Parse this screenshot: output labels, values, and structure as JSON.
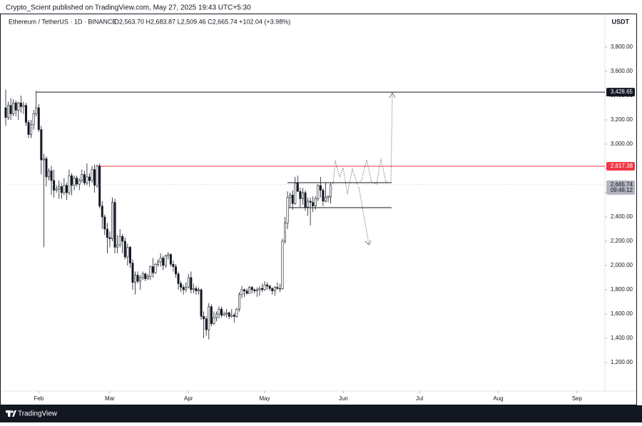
{
  "header": {
    "byline": "Crypto_Scient published on TradingView.com, May 27, 2025 19:43 UTC+5:30"
  },
  "footer": {
    "brand": "TradingView"
  },
  "chart_data": {
    "type": "candlestick",
    "title": "Ethereum / TetherUS · 1D · BINANCE",
    "ohlc_legend": "O2,563.70 H2,683.87 L2,509.46 C2,665.74 +102.04 (+3.98%)",
    "currency": "USDT",
    "up_color": "#ffffff",
    "down_color": "#131722",
    "grid": false,
    "xlim": [
      18,
      254
    ],
    "xticks": [
      {
        "value": 31,
        "label": "Feb"
      },
      {
        "value": 59,
        "label": "Mar"
      },
      {
        "value": 90,
        "label": "Apr"
      },
      {
        "value": 120,
        "label": "May"
      },
      {
        "value": 151,
        "label": "Jun"
      },
      {
        "value": 181,
        "label": "Jul"
      },
      {
        "value": 212,
        "label": "Aug"
      },
      {
        "value": 243,
        "label": "Sep"
      }
    ],
    "ylim": [
      1050,
      4000
    ],
    "yticks": [
      {
        "value": 1200,
        "label": "1,200.00"
      },
      {
        "value": 1400,
        "label": "1,400.00"
      },
      {
        "value": 1600,
        "label": "1,600.00"
      },
      {
        "value": 1800,
        "label": "1,800.00"
      },
      {
        "value": 2000,
        "label": "2,000.00"
      },
      {
        "value": 2200,
        "label": "2,200.00"
      },
      {
        "value": 2400,
        "label": "2,400.00"
      },
      {
        "value": 2600,
        "label": "2,600.00"
      },
      {
        "value": 2800,
        "label": "2,800.00"
      },
      {
        "value": 3000,
        "label": "3,000.00"
      },
      {
        "value": 3200,
        "label": "3,200.00"
      },
      {
        "value": 3400,
        "label": "3,400.00"
      },
      {
        "value": 3600,
        "label": "3,600.00"
      },
      {
        "value": 3800,
        "label": "3,800.00"
      }
    ],
    "levels": [
      {
        "value": 3428.65,
        "label": "3,428.65",
        "color": "#131722",
        "from": 30
      },
      {
        "value": 2817.38,
        "label": "2,817.38",
        "color": "#f23645",
        "from": 54
      }
    ],
    "last_price": {
      "value": 2665.74,
      "label": "2,665.74",
      "countdown": "09:46:12",
      "color": "#b2b5be"
    },
    "x": [
      18,
      19,
      20,
      21,
      22,
      23,
      24,
      25,
      26,
      27,
      28,
      29,
      30,
      31,
      32,
      33,
      34,
      35,
      36,
      37,
      38,
      39,
      40,
      41,
      42,
      43,
      44,
      45,
      46,
      47,
      48,
      49,
      50,
      51,
      52,
      53,
      54,
      55,
      56,
      57,
      58,
      59,
      60,
      61,
      62,
      63,
      64,
      65,
      66,
      67,
      68,
      69,
      70,
      71,
      72,
      73,
      74,
      75,
      76,
      77,
      78,
      79,
      80,
      81,
      82,
      83,
      84,
      85,
      86,
      87,
      88,
      89,
      90,
      91,
      92,
      93,
      94,
      95,
      96,
      97,
      98,
      99,
      100,
      101,
      102,
      103,
      104,
      105,
      106,
      107,
      108,
      109,
      110,
      111,
      112,
      113,
      114,
      115,
      116,
      117,
      118,
      119,
      120,
      121,
      122,
      123,
      124,
      125,
      126,
      127,
      128,
      129,
      130,
      131,
      132,
      133,
      134,
      135,
      136,
      137,
      138,
      139,
      140,
      141,
      142,
      143,
      144,
      145,
      146
    ],
    "ohlc": [
      [
        3300,
        3450,
        3150,
        3220
      ],
      [
        3220,
        3350,
        3200,
        3320
      ],
      [
        3320,
        3380,
        3200,
        3250
      ],
      [
        3250,
        3370,
        3230,
        3340
      ],
      [
        3340,
        3360,
        3230,
        3280
      ],
      [
        3280,
        3350,
        3200,
        3340
      ],
      [
        3340,
        3400,
        3260,
        3310
      ],
      [
        3310,
        3350,
        3250,
        3320
      ],
      [
        3320,
        3340,
        3150,
        3180
      ],
      [
        3180,
        3200,
        3050,
        3080
      ],
      [
        3080,
        3200,
        3050,
        3160
      ],
      [
        3160,
        3280,
        3120,
        3250
      ],
      [
        3250,
        3440,
        3230,
        3300
      ],
      [
        3300,
        3330,
        3100,
        3120
      ],
      [
        3120,
        3150,
        2750,
        2870
      ],
      [
        2870,
        2920,
        2150,
        2880
      ],
      [
        2880,
        2900,
        2650,
        2730
      ],
      [
        2730,
        2800,
        2700,
        2780
      ],
      [
        2780,
        2820,
        2580,
        2700
      ],
      [
        2700,
        2790,
        2560,
        2620
      ],
      [
        2620,
        2660,
        2600,
        2630
      ],
      [
        2630,
        2700,
        2550,
        2650
      ],
      [
        2650,
        2680,
        2550,
        2600
      ],
      [
        2600,
        2720,
        2580,
        2660
      ],
      [
        2660,
        2680,
        2540,
        2600
      ],
      [
        2600,
        2790,
        2580,
        2740
      ],
      [
        2740,
        2760,
        2580,
        2660
      ],
      [
        2660,
        2740,
        2620,
        2720
      ],
      [
        2720,
        2740,
        2650,
        2670
      ],
      [
        2670,
        2720,
        2620,
        2700
      ],
      [
        2700,
        2790,
        2680,
        2750
      ],
      [
        2750,
        2780,
        2660,
        2680
      ],
      [
        2680,
        2840,
        2660,
        2730
      ],
      [
        2730,
        2760,
        2650,
        2700
      ],
      [
        2700,
        2820,
        2680,
        2790
      ],
      [
        2790,
        2830,
        2600,
        2660
      ],
      [
        2660,
        2830,
        2640,
        2820
      ],
      [
        2820,
        2840,
        2470,
        2490
      ],
      [
        2490,
        2530,
        2300,
        2400
      ],
      [
        2400,
        2420,
        2250,
        2300
      ],
      [
        2300,
        2350,
        2100,
        2230
      ],
      [
        2230,
        2280,
        2150,
        2220
      ],
      [
        2220,
        2560,
        2200,
        2520
      ],
      [
        2520,
        2550,
        2100,
        2150
      ],
      [
        2150,
        2250,
        2100,
        2170
      ],
      [
        2170,
        2300,
        2150,
        2240
      ],
      [
        2240,
        2260,
        2100,
        2200
      ],
      [
        2200,
        2230,
        2050,
        2070
      ],
      [
        2070,
        2180,
        2000,
        2150
      ],
      [
        2150,
        2160,
        1980,
        2020
      ],
      [
        2020,
        2050,
        1800,
        1860
      ],
      [
        1860,
        1950,
        1760,
        1920
      ],
      [
        1920,
        1950,
        1850,
        1870
      ],
      [
        1870,
        1920,
        1800,
        1900
      ],
      [
        1900,
        1950,
        1880,
        1930
      ],
      [
        1930,
        1940,
        1870,
        1890
      ],
      [
        1890,
        1930,
        1880,
        1910
      ],
      [
        1910,
        2000,
        1880,
        1990
      ],
      [
        1990,
        2060,
        1900,
        1940
      ],
      [
        1940,
        2020,
        1930,
        2010
      ],
      [
        2010,
        2050,
        1990,
        2030
      ],
      [
        2030,
        2100,
        1990,
        2060
      ],
      [
        2060,
        2080,
        1960,
        2000
      ],
      [
        2000,
        2090,
        1980,
        2080
      ],
      [
        2080,
        2110,
        2050,
        2090
      ],
      [
        2090,
        2100,
        1990,
        2010
      ],
      [
        2010,
        2040,
        1950,
        1990
      ],
      [
        1990,
        2010,
        1900,
        1930
      ],
      [
        1930,
        1950,
        1800,
        1850
      ],
      [
        1850,
        1870,
        1780,
        1820
      ],
      [
        1820,
        1840,
        1760,
        1800
      ],
      [
        1800,
        1860,
        1780,
        1820
      ],
      [
        1820,
        1930,
        1810,
        1900
      ],
      [
        1900,
        1950,
        1770,
        1800
      ],
      [
        1800,
        1850,
        1770,
        1810
      ],
      [
        1810,
        1830,
        1760,
        1790
      ],
      [
        1790,
        1820,
        1760,
        1800
      ],
      [
        1800,
        1810,
        1550,
        1580
      ],
      [
        1580,
        1620,
        1400,
        1560
      ],
      [
        1560,
        1580,
        1420,
        1470
      ],
      [
        1470,
        1690,
        1390,
        1660
      ],
      [
        1660,
        1680,
        1500,
        1520
      ],
      [
        1520,
        1620,
        1510,
        1570
      ],
      [
        1570,
        1620,
        1540,
        1600
      ],
      [
        1600,
        1660,
        1560,
        1640
      ],
      [
        1640,
        1660,
        1570,
        1590
      ],
      [
        1590,
        1620,
        1580,
        1600
      ],
      [
        1600,
        1640,
        1570,
        1610
      ],
      [
        1610,
        1620,
        1560,
        1580
      ],
      [
        1580,
        1640,
        1570,
        1590
      ],
      [
        1590,
        1610,
        1530,
        1580
      ],
      [
        1580,
        1650,
        1570,
        1640
      ],
      [
        1640,
        1780,
        1620,
        1760
      ],
      [
        1760,
        1830,
        1730,
        1800
      ],
      [
        1800,
        1810,
        1740,
        1790
      ],
      [
        1790,
        1810,
        1760,
        1770
      ],
      [
        1770,
        1830,
        1770,
        1820
      ],
      [
        1820,
        1830,
        1770,
        1800
      ],
      [
        1800,
        1810,
        1770,
        1790
      ],
      [
        1790,
        1820,
        1740,
        1800
      ],
      [
        1800,
        1830,
        1750,
        1810
      ],
      [
        1810,
        1850,
        1780,
        1800
      ],
      [
        1800,
        1870,
        1790,
        1840
      ],
      [
        1840,
        1860,
        1800,
        1830
      ],
      [
        1830,
        1840,
        1790,
        1810
      ],
      [
        1810,
        1820,
        1760,
        1790
      ],
      [
        1790,
        1830,
        1750,
        1820
      ],
      [
        1820,
        1860,
        1800,
        1810
      ],
      [
        1810,
        1850,
        1780,
        1810
      ],
      [
        1810,
        2220,
        1800,
        2200
      ],
      [
        2200,
        2400,
        2180,
        2350
      ],
      [
        2350,
        2610,
        2300,
        2560
      ],
      [
        2560,
        2600,
        2480,
        2580
      ],
      [
        2580,
        2620,
        2460,
        2510
      ],
      [
        2510,
        2730,
        2500,
        2680
      ],
      [
        2680,
        2740,
        2620,
        2610
      ],
      [
        2610,
        2640,
        2480,
        2550
      ],
      [
        2550,
        2640,
        2500,
        2600
      ],
      [
        2600,
        2620,
        2450,
        2480
      ],
      [
        2480,
        2560,
        2410,
        2530
      ],
      [
        2530,
        2560,
        2330,
        2520
      ],
      [
        2520,
        2570,
        2440,
        2490
      ],
      [
        2490,
        2570,
        2460,
        2550
      ],
      [
        2550,
        2670,
        2530,
        2660
      ],
      [
        2660,
        2730,
        2560,
        2620
      ],
      [
        2620,
        2640,
        2490,
        2530
      ],
      [
        2530,
        2680,
        2520,
        2560
      ],
      [
        2560,
        2580,
        2520,
        2570
      ],
      [
        2563.7,
        2683.87,
        2509.46,
        2665.74
      ]
    ]
  }
}
